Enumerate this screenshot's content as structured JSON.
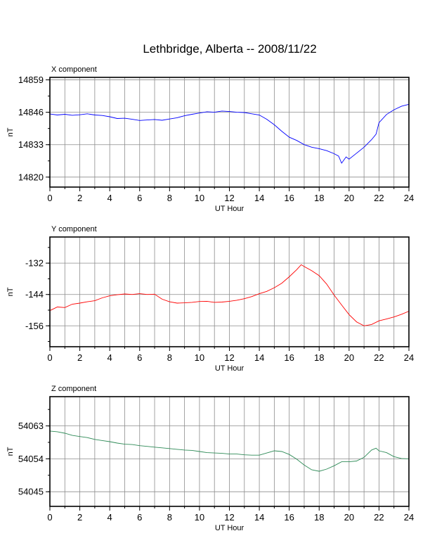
{
  "title": "Lethbridge, Alberta -- 2008/11/22",
  "chart_data": [
    {
      "type": "line",
      "panel_label": "X component",
      "xlabel": "UT Hour",
      "ylabel": "nT",
      "xlim": [
        0,
        24
      ],
      "ylim": [
        14816,
        14860
      ],
      "yticks": [
        14820,
        14833,
        14846,
        14859
      ],
      "xticks": [
        0,
        2,
        4,
        6,
        8,
        10,
        12,
        14,
        16,
        18,
        20,
        22,
        24
      ],
      "grid": true,
      "color": "#0000ff",
      "series": [
        {
          "x": [
            0,
            0.5,
            1,
            1.5,
            2,
            2.5,
            3,
            3.5,
            4,
            4.5,
            5,
            5.5,
            6,
            6.5,
            7,
            7.5,
            8,
            8.5,
            9,
            9.5,
            10,
            10.5,
            11,
            11.5,
            12,
            12.5,
            13,
            13.5,
            14,
            14.5,
            15,
            15.5,
            16,
            16.5,
            17,
            17.5,
            18,
            18.5,
            19,
            19.3,
            19.5,
            19.8,
            20,
            20.5,
            21,
            21.5,
            21.8,
            22,
            22.5,
            23,
            23.5,
            24
          ],
          "y": [
            14845.3,
            14844.9,
            14845.2,
            14844.8,
            14845.0,
            14845.4,
            14844.9,
            14844.7,
            14844.2,
            14843.5,
            14843.6,
            14843.2,
            14842.7,
            14842.9,
            14843.1,
            14842.8,
            14843.3,
            14843.8,
            14844.6,
            14845.2,
            14845.7,
            14846.2,
            14846.0,
            14846.5,
            14846.3,
            14846.0,
            14845.9,
            14845.4,
            14844.9,
            14843.2,
            14841.0,
            14838.4,
            14836.0,
            14834.7,
            14833.0,
            14832.0,
            14831.4,
            14830.6,
            14829.4,
            14828.4,
            14825.6,
            14828.1,
            14827.2,
            14829.6,
            14832.0,
            14835.0,
            14837.2,
            14841.8,
            14845.1,
            14847.0,
            14848.4,
            14849.2
          ]
        }
      ]
    },
    {
      "type": "line",
      "panel_label": "Y component",
      "xlabel": "UT Hour",
      "ylabel": "nT",
      "xlim": [
        0,
        24
      ],
      "ylim": [
        -164,
        -122
      ],
      "yticks": [
        -132,
        -144,
        -156
      ],
      "xticks": [
        0,
        2,
        4,
        6,
        8,
        10,
        12,
        14,
        16,
        18,
        20,
        22,
        24
      ],
      "grid": true,
      "color": "#ff0000",
      "series": [
        {
          "x": [
            0,
            0.5,
            1,
            1.5,
            2,
            2.5,
            3,
            3.5,
            4,
            4.5,
            5,
            5.5,
            6,
            6.5,
            7,
            7.5,
            8,
            8.5,
            9,
            9.5,
            10,
            10.5,
            11,
            11.5,
            12,
            12.5,
            13,
            13.5,
            14,
            14.5,
            15,
            15.5,
            16,
            16.5,
            16.8,
            17,
            17.5,
            18,
            18.5,
            19,
            19.5,
            20,
            20.5,
            21,
            21.5,
            22,
            22.5,
            23,
            23.5,
            24
          ],
          "y": [
            -150.2,
            -148.8,
            -149.0,
            -147.7,
            -147.3,
            -146.8,
            -146.4,
            -145.3,
            -144.5,
            -144.1,
            -143.8,
            -144.0,
            -143.7,
            -144.0,
            -143.9,
            -145.8,
            -146.8,
            -147.3,
            -147.2,
            -147.0,
            -146.7,
            -146.6,
            -147.0,
            -146.9,
            -146.6,
            -146.2,
            -145.6,
            -144.8,
            -143.7,
            -142.8,
            -141.4,
            -139.7,
            -137.2,
            -134.5,
            -132.6,
            -133.3,
            -134.9,
            -136.8,
            -140.0,
            -144.2,
            -148.0,
            -151.7,
            -154.5,
            -156.0,
            -155.5,
            -154.1,
            -153.4,
            -152.6,
            -151.6,
            -150.4
          ]
        }
      ]
    },
    {
      "type": "line",
      "panel_label": "Z component",
      "xlabel": "UT Hour",
      "ylabel": "nT",
      "xlim": [
        0,
        24
      ],
      "ylim": [
        54041,
        54071
      ],
      "yticks": [
        54045,
        54054,
        54063
      ],
      "xticks": [
        0,
        2,
        4,
        6,
        8,
        10,
        12,
        14,
        16,
        18,
        20,
        22,
        24
      ],
      "grid": true,
      "color": "#2e8b57",
      "series": [
        {
          "x": [
            0,
            0.5,
            1,
            1.5,
            2,
            2.5,
            3,
            3.5,
            4,
            4.5,
            5,
            5.5,
            6,
            6.5,
            7,
            7.5,
            8,
            8.5,
            9,
            9.5,
            10,
            10.5,
            11,
            11.5,
            12,
            12.5,
            13,
            13.5,
            14,
            14.5,
            15,
            15.5,
            16,
            16.5,
            17,
            17.5,
            18,
            18.5,
            19,
            19.5,
            20,
            20.5,
            21,
            21.5,
            21.8,
            22,
            22.5,
            23,
            23.5,
            24
          ],
          "y": [
            54061.6,
            54061.4,
            54061.0,
            54060.4,
            54060.1,
            54059.8,
            54059.3,
            54059.0,
            54058.7,
            54058.3,
            54058.0,
            54057.9,
            54057.6,
            54057.4,
            54057.2,
            54057.0,
            54056.8,
            54056.6,
            54056.4,
            54056.3,
            54056.0,
            54055.7,
            54055.6,
            54055.5,
            54055.3,
            54055.3,
            54055.1,
            54055.0,
            54055.0,
            54055.6,
            54056.2,
            54056.0,
            54055.2,
            54053.9,
            54052.3,
            54051.0,
            54050.6,
            54051.2,
            54052.1,
            54053.2,
            54053.2,
            54053.4,
            54054.4,
            54056.4,
            54056.9,
            54056.2,
            54055.7,
            54054.6,
            54054.1,
            54054.0
          ]
        }
      ]
    }
  ]
}
